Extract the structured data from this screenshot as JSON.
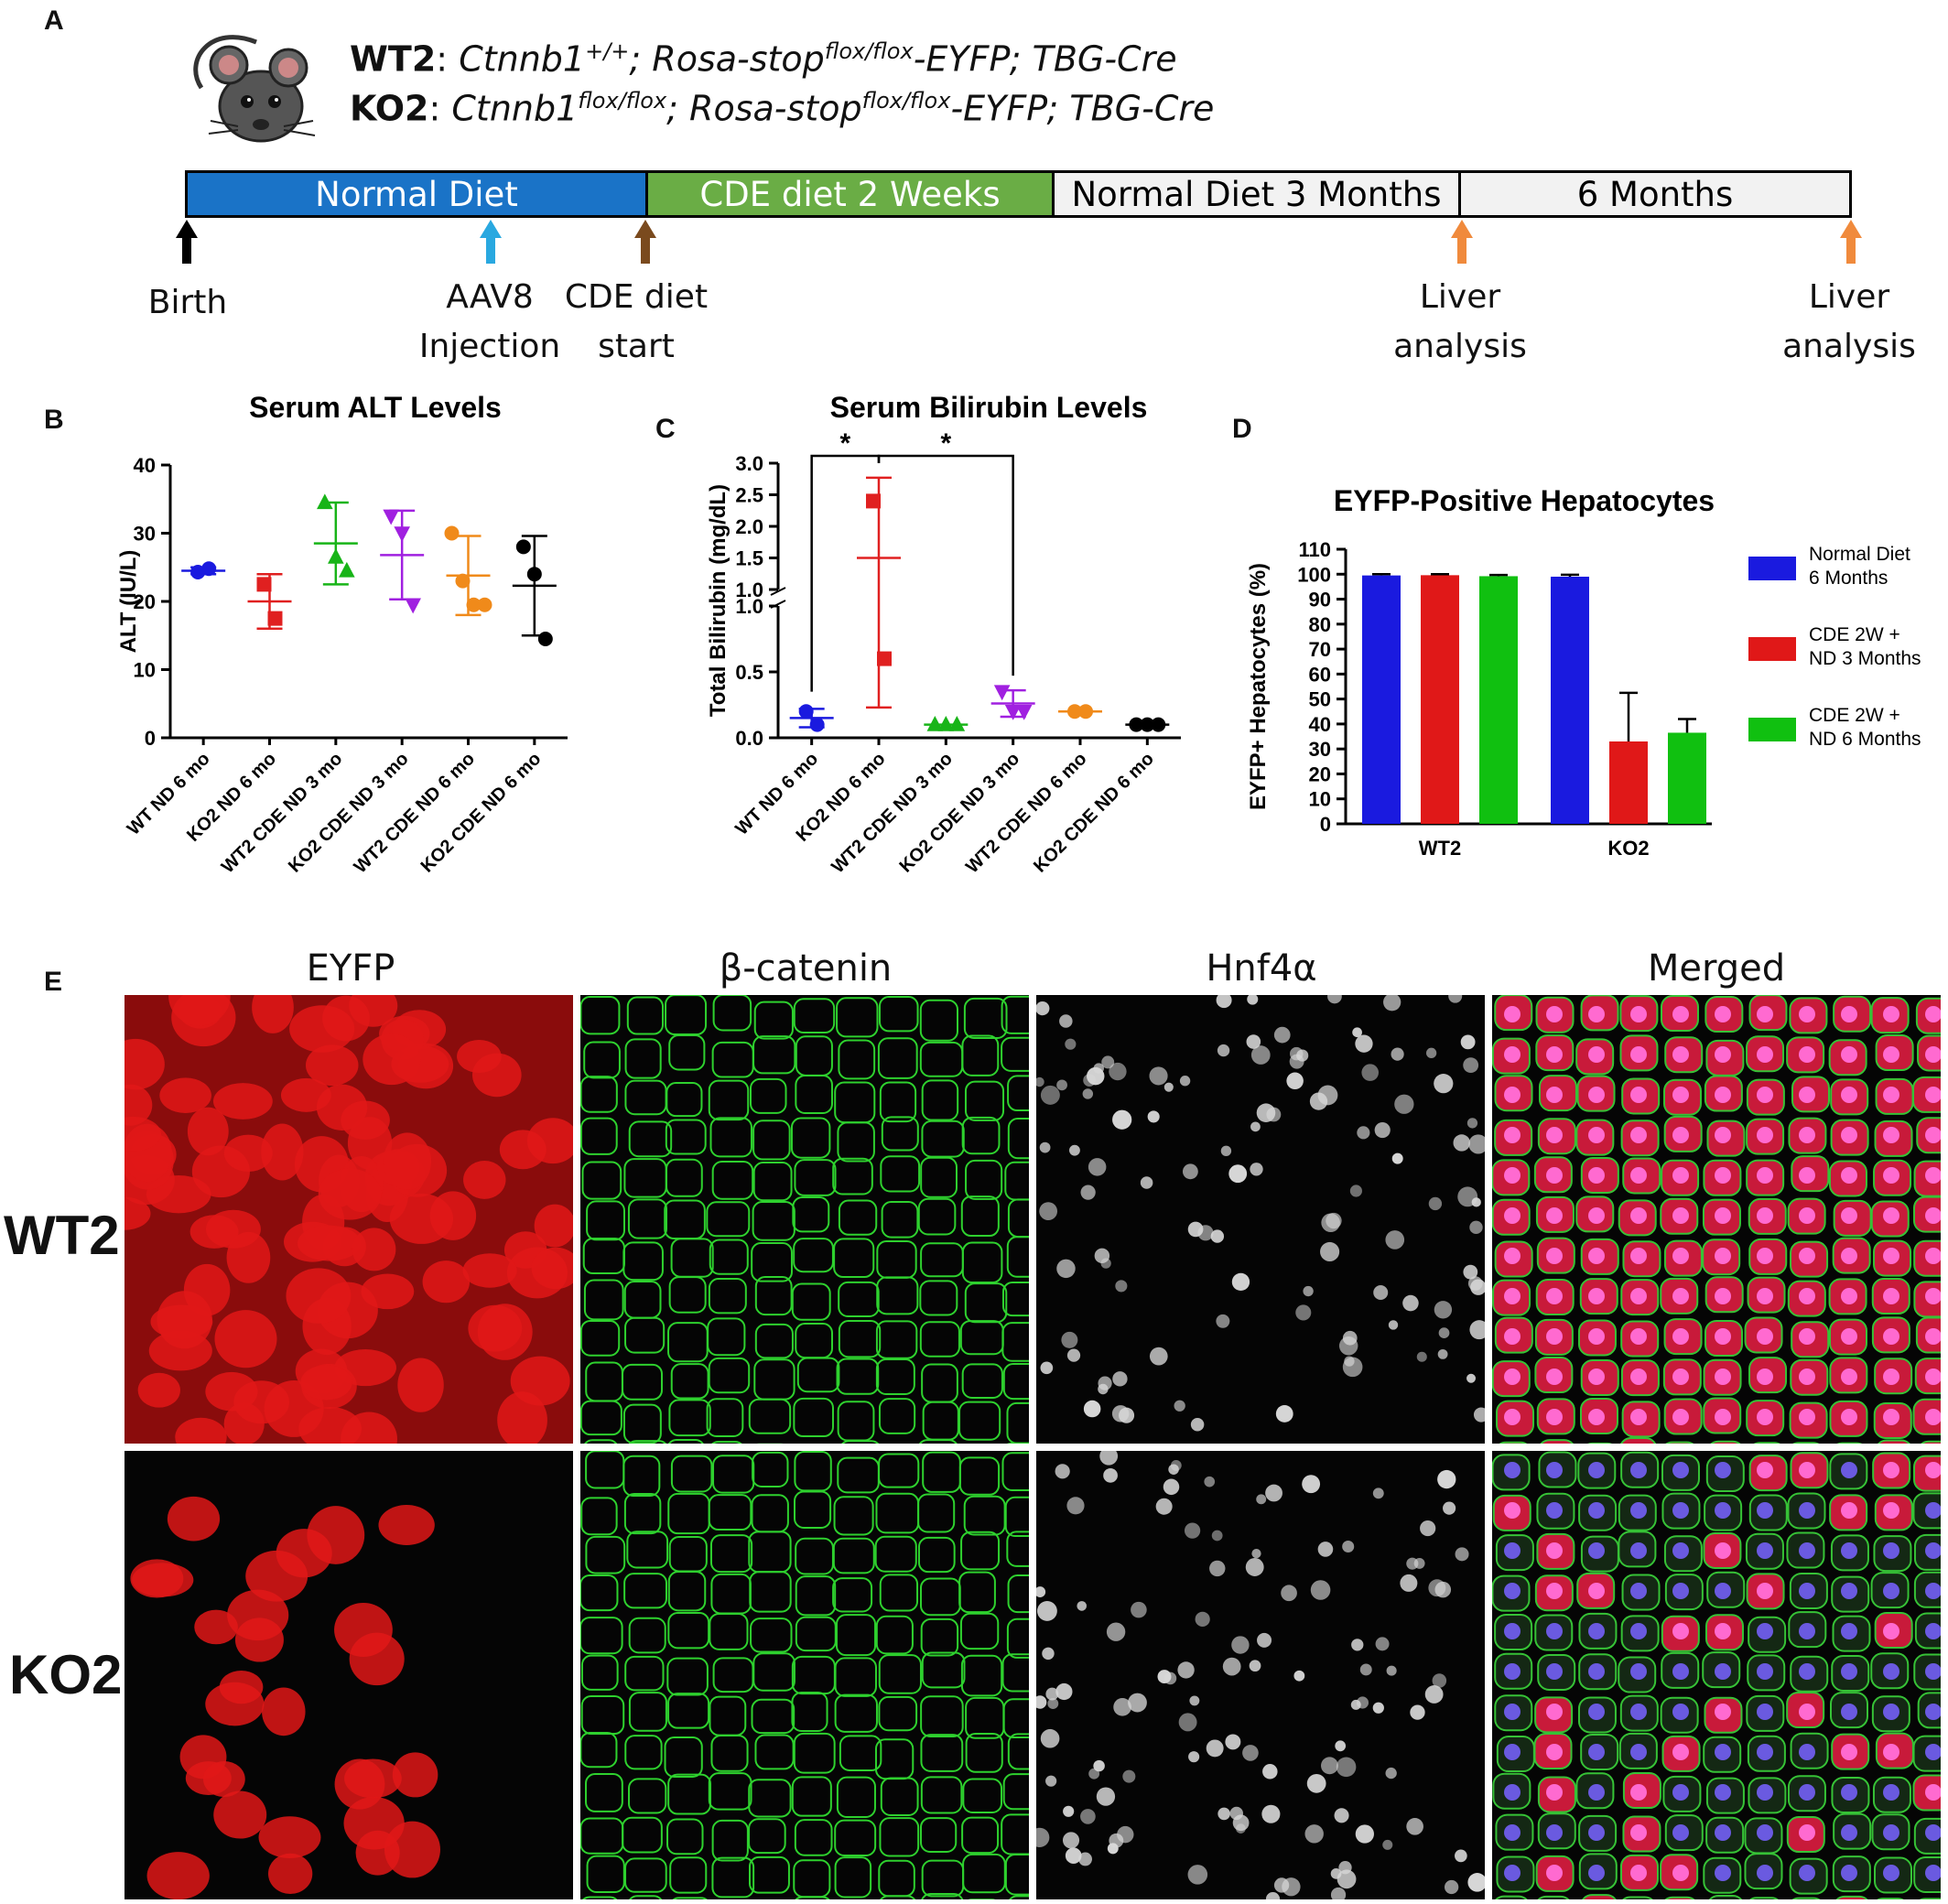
{
  "panels": {
    "a": "A",
    "b": "B",
    "c": "C",
    "d": "D",
    "e": "E"
  },
  "genotypes": {
    "wt2": {
      "name": "WT2",
      "sep": ":",
      "gene": "Ctnnb1",
      "gene_sup": "+/+",
      "mid": "; Rosa-stop",
      "mid_sup": "flox/flox",
      "tail": "-EYFP; TBG-Cre"
    },
    "ko2": {
      "name": "KO2",
      "sep": ":",
      "gene": "Ctnnb1",
      "gene_sup": "flox/flox",
      "mid": "; Rosa-stop",
      "mid_sup": "flox/flox",
      "tail": "-EYFP; TBG-Cre"
    }
  },
  "timeline": {
    "segments": [
      {
        "label": "Normal Diet",
        "color": "#1a73c7",
        "text_color": "#ffffff"
      },
      {
        "label": "CDE diet 2 Weeks",
        "color": "#6aad45",
        "text_color": "#ffffff"
      },
      {
        "label": "Normal Diet 3 Months",
        "color": "#f2f2f2",
        "text_color": "#000000"
      },
      {
        "label": "6 Months",
        "color": "#f2f2f2",
        "text_color": "#000000"
      }
    ],
    "events": [
      {
        "label1": "Birth",
        "label2": "",
        "color": "#000000"
      },
      {
        "label1": "AAV8",
        "label2": "Injection",
        "color": "#29a8e0"
      },
      {
        "label1": "CDE diet",
        "label2": "start",
        "color": "#7a4a1e"
      },
      {
        "label1": "Liver",
        "label2": "analysis",
        "color": "#f08a3c"
      },
      {
        "label1": "Liver",
        "label2": "analysis",
        "color": "#f08a3c"
      }
    ]
  },
  "chart_data": [
    {
      "type": "scatter",
      "title": "Serum ALT Levels",
      "ylabel": "ALT (IU/L)",
      "ylim": [
        0,
        40
      ],
      "yticks": [
        0,
        10,
        20,
        30,
        40
      ],
      "categories": [
        "WT ND 6 mo",
        "KO2 ND 6 mo",
        "WT2 CDE ND 3 mo",
        "KO2 CDE ND 3 mo",
        "WT2 CDE ND 6 mo",
        "KO2 CDE ND 6 mo"
      ],
      "colors": [
        "#1a1adf",
        "#e02020",
        "#18b418",
        "#a020e0",
        "#f08a1a",
        "#000000"
      ],
      "markers": [
        "circle",
        "square",
        "triangle",
        "triangle-down",
        "circle",
        "circle"
      ],
      "series": [
        {
          "points": [
            24.3,
            24.8
          ],
          "mean": 24.5,
          "sd": 0.5
        },
        {
          "points": [
            22.5,
            17.5
          ],
          "mean": 20.0,
          "sd": 4.0
        },
        {
          "points": [
            34.5,
            26.5,
            24.5
          ],
          "mean": 28.5,
          "sd": 6.0
        },
        {
          "points": [
            32.5,
            30.0,
            19.5
          ],
          "mean": 26.8,
          "sd": 6.5
        },
        {
          "points": [
            30.0,
            23.0,
            19.5,
            19.5
          ],
          "mean": 23.8,
          "sd": 5.8
        },
        {
          "points": [
            28.0,
            24.0,
            14.5
          ],
          "mean": 22.3,
          "sd": 7.3
        }
      ]
    },
    {
      "type": "scatter",
      "title": "Serum Bilirubin Levels",
      "ylabel": "Total Bilirubin (mg/dL)",
      "yticks_low": [
        "0.0",
        "0.5",
        "1.0"
      ],
      "yticks_high": [
        "1.0",
        "1.5",
        "2.0",
        "2.5",
        "3.0"
      ],
      "axis_break": [
        1.0,
        1.0
      ],
      "categories": [
        "WT ND 6 mo",
        "KO2 ND 6 mo",
        "WT2 CDE ND 3 mo",
        "KO2 CDE ND 3 mo",
        "WT2 CDE ND 6 mo",
        "KO2 CDE ND 6 mo"
      ],
      "colors": [
        "#1a1adf",
        "#e02020",
        "#18b418",
        "#a020e0",
        "#f08a1a",
        "#000000"
      ],
      "markers": [
        "circle",
        "square",
        "triangle",
        "triangle-down",
        "circle",
        "circle"
      ],
      "series": [
        {
          "points": [
            0.2,
            0.1
          ],
          "mean": 0.15,
          "sd": 0.07
        },
        {
          "points": [
            2.4,
            0.6
          ],
          "mean": 1.5,
          "sd": 1.27
        },
        {
          "points": [
            0.1,
            0.1,
            0.1
          ],
          "mean": 0.1,
          "sd": 0.0
        },
        {
          "points": [
            0.35,
            0.2,
            0.2
          ],
          "mean": 0.26,
          "sd": 0.1
        },
        {
          "points": [
            0.2,
            0.2
          ],
          "mean": 0.2,
          "sd": 0.0
        },
        {
          "points": [
            0.1,
            0.1,
            0.1
          ],
          "mean": 0.1,
          "sd": 0.0
        }
      ],
      "significance": [
        {
          "from": 0,
          "to": 1,
          "label": "*"
        },
        {
          "from": 1,
          "to": 3,
          "label": "*"
        }
      ]
    },
    {
      "type": "bar",
      "title": "EYFP-Positive Hepatocytes",
      "ylabel": "EYFP+ Hepatocytes (%)",
      "ylim": [
        0,
        110
      ],
      "yticks": [
        0,
        10,
        20,
        30,
        40,
        50,
        60,
        70,
        80,
        90,
        100,
        110
      ],
      "categories": [
        "WT2",
        "KO2"
      ],
      "series": [
        {
          "name": "Normal Diet 6 Months",
          "legend1": "Normal Diet",
          "legend2": "6 Months",
          "color": "#1a1adf",
          "values": [
            99.5,
            99.0
          ],
          "errors": [
            0.5,
            0.8
          ]
        },
        {
          "name": "CDE 2W + ND 3 Months",
          "legend1": "CDE 2W +",
          "legend2": "ND 3 Months",
          "color": "#e01818",
          "values": [
            99.6,
            33.0
          ],
          "errors": [
            0.4,
            19.5
          ]
        },
        {
          "name": "CDE 2W + ND 6 Months",
          "legend1": "CDE 2W +",
          "legend2": "ND 6 Months",
          "color": "#10c010",
          "values": [
            99.2,
            36.5
          ],
          "errors": [
            0.5,
            5.5
          ]
        }
      ],
      "legend_position": "right"
    }
  ],
  "micrographs": {
    "columns": [
      "EYFP",
      "β-catenin",
      "Hnf4α",
      "Merged"
    ],
    "rows": [
      "WT2",
      "KO2"
    ]
  }
}
